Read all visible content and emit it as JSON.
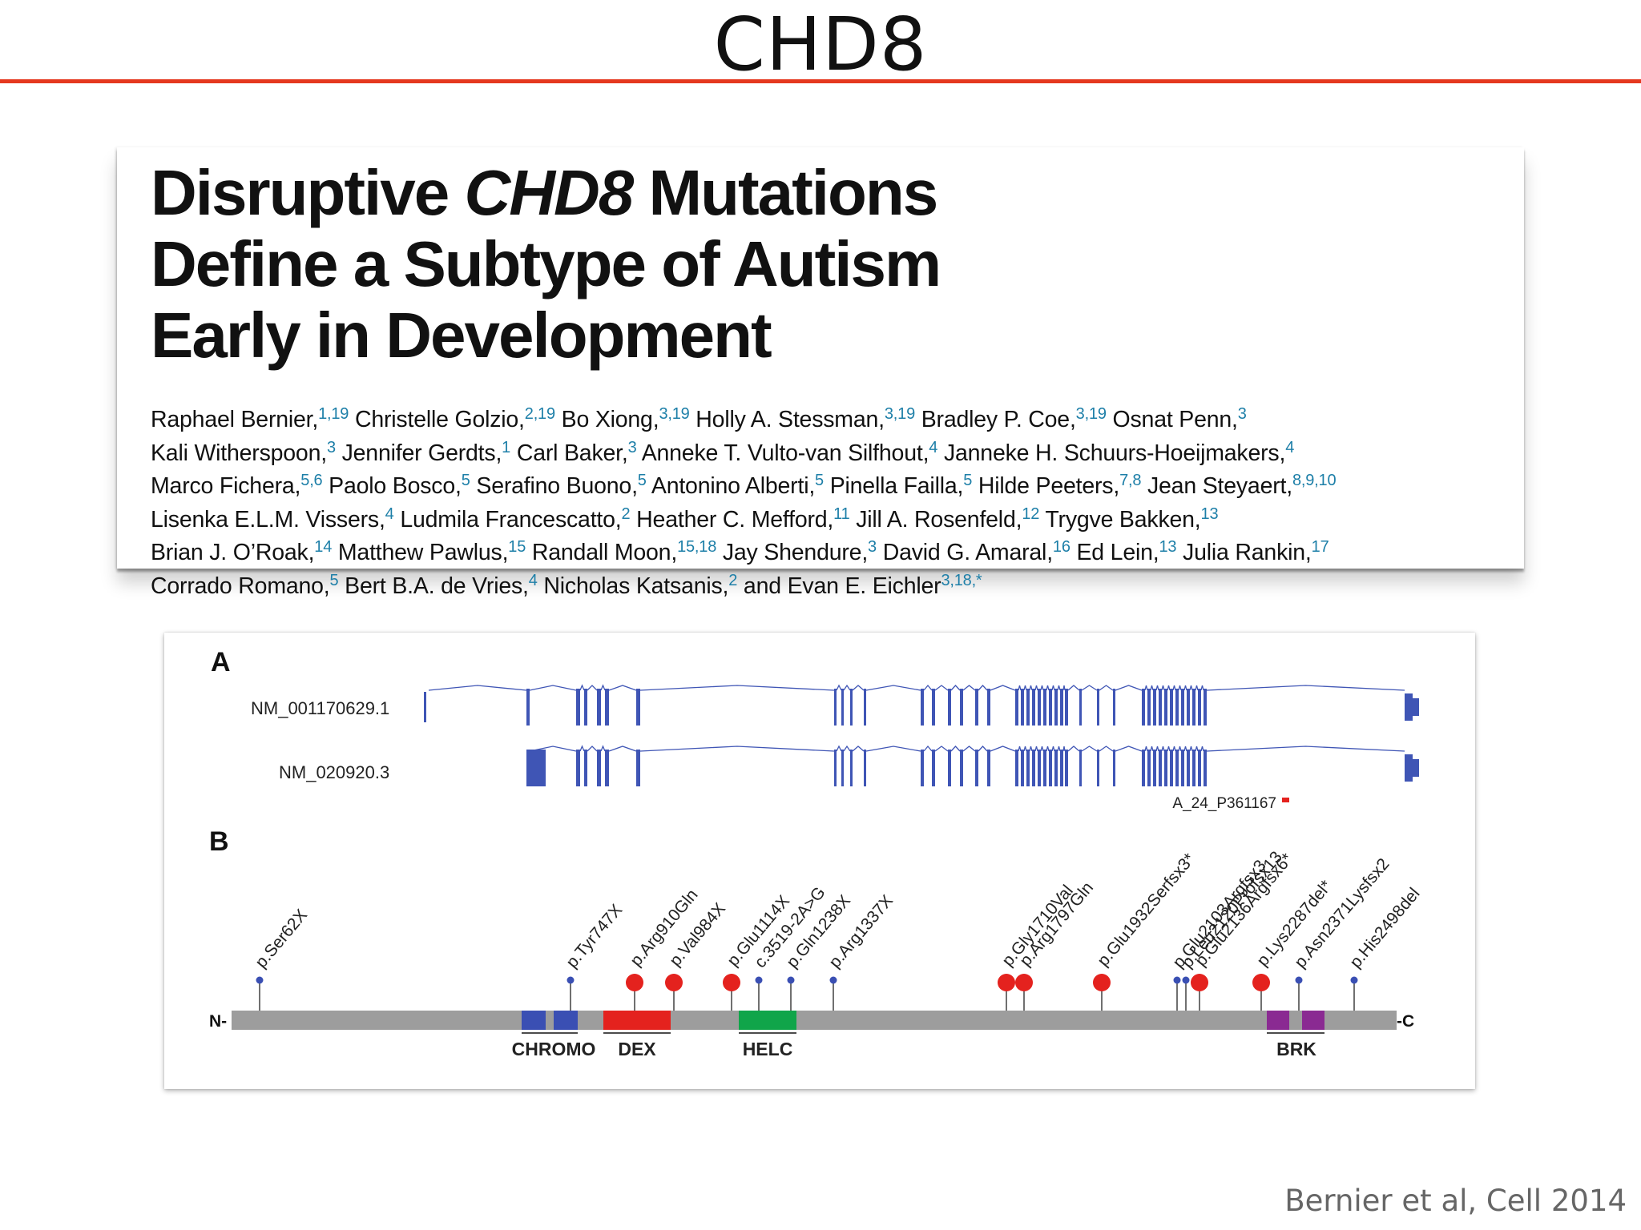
{
  "slide": {
    "title": "CHD8",
    "citation": "Bernier et al, Cell 2014"
  },
  "paper": {
    "title_lines": [
      {
        "parts": [
          {
            "text": "Disruptive ",
            "italic": false
          },
          {
            "text": "CHD8",
            "italic": true
          },
          {
            "text": " Mutations",
            "italic": false
          }
        ]
      },
      {
        "parts": [
          {
            "text": "Define a Subtype of Autism",
            "italic": false
          }
        ]
      },
      {
        "parts": [
          {
            "text": "Early in Development",
            "italic": false
          }
        ]
      }
    ],
    "author_lines": [
      [
        {
          "name": "Raphael Bernier,",
          "aff": "1,19"
        },
        {
          "name": " Christelle Golzio,",
          "aff": "2,19"
        },
        {
          "name": " Bo Xiong,",
          "aff": "3,19"
        },
        {
          "name": " Holly A. Stessman,",
          "aff": "3,19"
        },
        {
          "name": " Bradley P. Coe,",
          "aff": "3,19"
        },
        {
          "name": " Osnat Penn,",
          "aff": "3"
        }
      ],
      [
        {
          "name": "Kali Witherspoon,",
          "aff": "3"
        },
        {
          "name": " Jennifer Gerdts,",
          "aff": "1"
        },
        {
          "name": " Carl Baker,",
          "aff": "3"
        },
        {
          "name": " Anneke T. Vulto-van Silfhout,",
          "aff": "4"
        },
        {
          "name": " Janneke H. Schuurs-Hoeijmakers,",
          "aff": "4"
        }
      ],
      [
        {
          "name": "Marco Fichera,",
          "aff": "5,6"
        },
        {
          "name": " Paolo Bosco,",
          "aff": "5"
        },
        {
          "name": " Serafino Buono,",
          "aff": "5"
        },
        {
          "name": " Antonino Alberti,",
          "aff": "5"
        },
        {
          "name": " Pinella Failla,",
          "aff": "5"
        },
        {
          "name": " Hilde Peeters,",
          "aff": "7,8"
        },
        {
          "name": " Jean Steyaert,",
          "aff": "8,9,10"
        }
      ],
      [
        {
          "name": "Lisenka E.L.M. Vissers,",
          "aff": "4"
        },
        {
          "name": " Ludmila Francescatto,",
          "aff": "2"
        },
        {
          "name": " Heather C. Mefford,",
          "aff": "11"
        },
        {
          "name": " Jill A. Rosenfeld,",
          "aff": "12"
        },
        {
          "name": " Trygve Bakken,",
          "aff": "13"
        }
      ],
      [
        {
          "name": "Brian J. O’Roak,",
          "aff": "14"
        },
        {
          "name": " Matthew Pawlus,",
          "aff": "15"
        },
        {
          "name": " Randall Moon,",
          "aff": "15,18"
        },
        {
          "name": " Jay Shendure,",
          "aff": "3"
        },
        {
          "name": " David G. Amaral,",
          "aff": "16"
        },
        {
          "name": " Ed Lein,",
          "aff": "13"
        },
        {
          "name": " Julia Rankin,",
          "aff": "17"
        }
      ],
      [
        {
          "name": "Corrado Romano,",
          "aff": "5"
        },
        {
          "name": " Bert B.A. de Vries,",
          "aff": "4"
        },
        {
          "name": " Nicholas Katsanis,",
          "aff": "2"
        },
        {
          "name": " and Evan E. Eichler",
          "aff": "3,18,*"
        }
      ]
    ]
  },
  "figure": {
    "panel_a_label": "A",
    "panel_b_label": "B",
    "transcripts": [
      "NM_001170629.1",
      "NM_020920.3"
    ],
    "probe_label": "A_24_P361167",
    "n_terminus": "N-",
    "c_terminus": "-C",
    "domains": [
      {
        "label": "CHROMO",
        "color": "#3a4fb3"
      },
      {
        "label": "DEX",
        "color": "#e4221e"
      },
      {
        "label": "HELC",
        "color": "#10a54a"
      },
      {
        "label": "BRK",
        "color": "#8a2a92"
      }
    ],
    "mutations": [
      {
        "label": "p.Ser62X",
        "kind": "small"
      },
      {
        "label": "p.Tyr747X",
        "kind": "small"
      },
      {
        "label": "p.Arg910Gln",
        "kind": "large"
      },
      {
        "label": "p.Val984X",
        "kind": "large"
      },
      {
        "label": "p.Glu1114X",
        "kind": "large"
      },
      {
        "label": "c.3519-2A>G",
        "kind": "small"
      },
      {
        "label": "p.Gln1238X",
        "kind": "small"
      },
      {
        "label": "p.Arg1337X",
        "kind": "small"
      },
      {
        "label": "p.Gly1710Val",
        "kind": "large"
      },
      {
        "label": "p.Arg1797Gln",
        "kind": "large"
      },
      {
        "label": "p.Glu1932Serfsx3*",
        "kind": "large"
      },
      {
        "label": "p.Glu2103Argfsx3",
        "kind": "small"
      },
      {
        "label": "p.Leu2120Profsx13",
        "kind": "small"
      },
      {
        "label": "p.Glu2136Argfsx6*",
        "kind": "large"
      },
      {
        "label": "p.Lys2287del*",
        "kind": "large"
      },
      {
        "label": "p.Asn2371Lysfsx2",
        "kind": "small"
      },
      {
        "label": "p.His2498del",
        "kind": "small"
      }
    ],
    "colors": {
      "exon": "#3f55b5",
      "protein_bar": "#9d9d9d",
      "mutation_large": "#e4221e",
      "mutation_small": "#3a4fb3",
      "probe": "#e4221e"
    }
  }
}
